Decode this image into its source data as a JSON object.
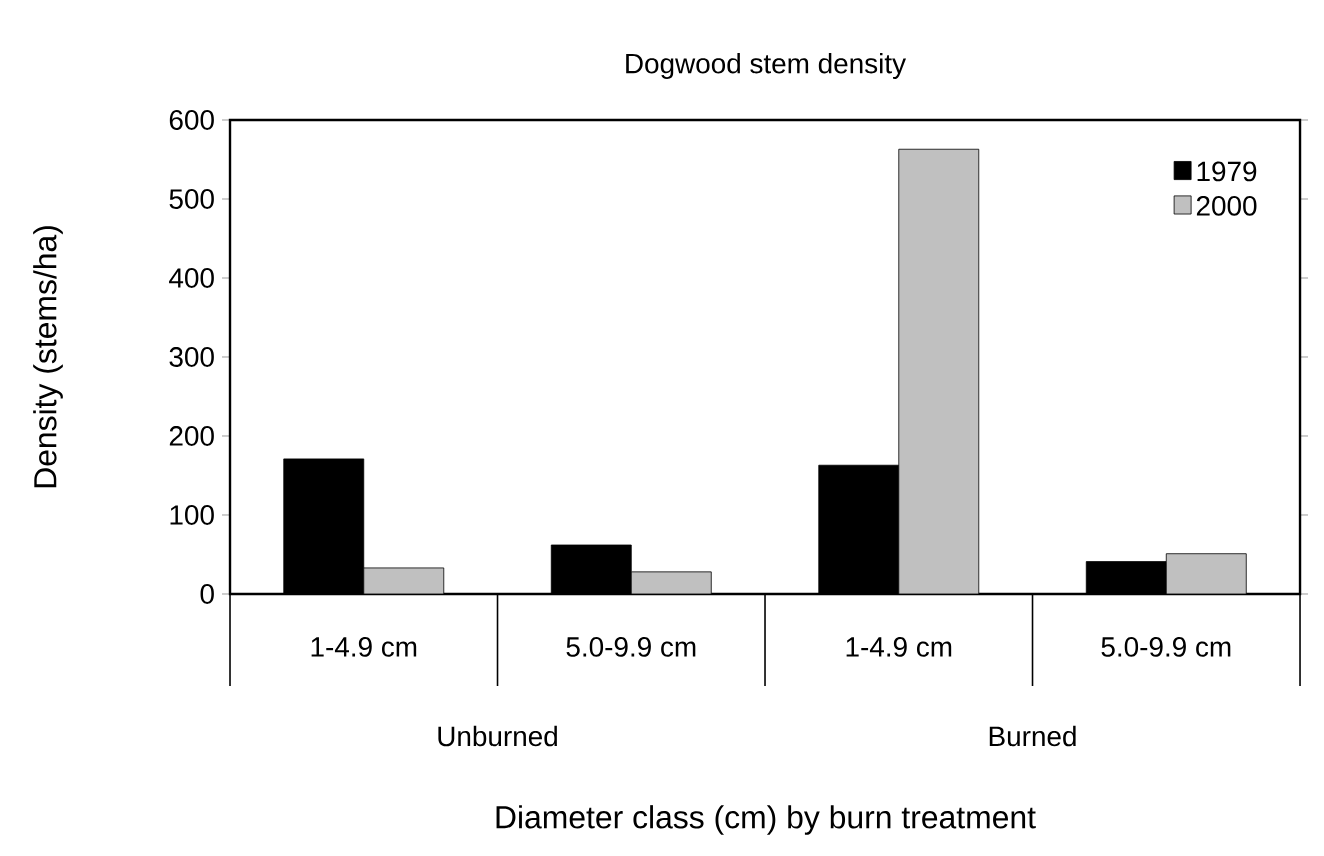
{
  "chart_data": {
    "type": "bar",
    "title": "Dogwood stem density",
    "xlabel": "Diameter class (cm) by burn treatment",
    "ylabel": "Density (stems/ha)",
    "categories": [
      "1-4.9 cm",
      "5.0-9.9 cm",
      "1-4.9 cm",
      "5.0-9.9 cm"
    ],
    "series": [
      {
        "name": "1979",
        "color": "#000000",
        "values": [
          171,
          62,
          163,
          41
        ]
      },
      {
        "name": "2000",
        "color": "#c0c0c0",
        "values": [
          33,
          28,
          563,
          51
        ]
      }
    ],
    "annotations": [
      "Unburned",
      "Burned"
    ],
    "ylim": [
      0,
      600
    ],
    "yticks": [
      0,
      100,
      200,
      300,
      400,
      500,
      600
    ],
    "legend": "top right",
    "grid": false
  }
}
